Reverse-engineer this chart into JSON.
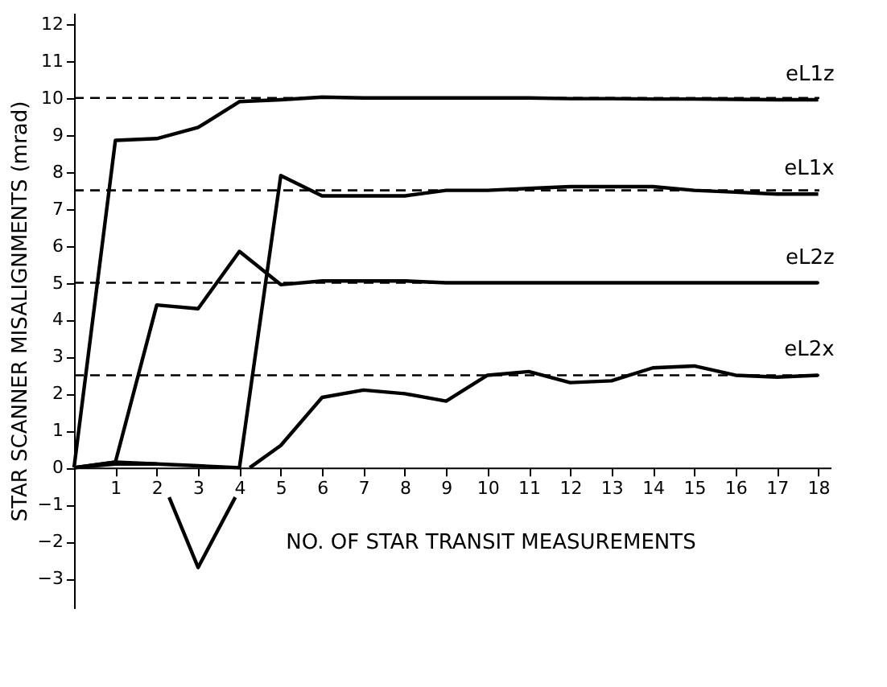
{
  "chart_data": {
    "type": "line",
    "xlabel": "NO. OF STAR TRANSIT MEASUREMENTS",
    "ylabel": "STAR SCANNER MISALIGNMENTS (mrad)",
    "series": [
      {
        "name": "eL1z",
        "color": "#000000",
        "x": [
          0,
          1,
          2,
          3,
          4,
          5,
          6,
          7,
          8,
          9,
          10,
          11,
          12,
          13,
          14,
          15,
          16,
          17,
          18
        ],
        "values": [
          0,
          8.85,
          8.9,
          9.2,
          9.9,
          9.95,
          10.02,
          10,
          10,
          10,
          10,
          10,
          9.98,
          9.98,
          9.97,
          9.97,
          9.96,
          9.95,
          9.95
        ]
      },
      {
        "name": "eL1x",
        "color": "#000000",
        "x": [
          0,
          1,
          2,
          3,
          4,
          5,
          6,
          7,
          8,
          9,
          10,
          11,
          12,
          13,
          14,
          15,
          16,
          17,
          18
        ],
        "values": [
          0,
          0.15,
          0.1,
          0.05,
          0,
          7.9,
          7.35,
          7.35,
          7.35,
          7.5,
          7.5,
          7.55,
          7.6,
          7.6,
          7.6,
          7.5,
          7.45,
          7.4,
          7.4
        ]
      },
      {
        "name": "eL2z",
        "color": "#000000",
        "x": [
          0,
          1,
          2,
          3,
          4,
          5,
          6,
          7,
          8,
          9,
          10,
          11,
          12,
          13,
          14,
          15,
          16,
          17,
          18
        ],
        "values": [
          0,
          0.15,
          4.4,
          4.3,
          5.85,
          4.95,
          5.05,
          5.05,
          5.05,
          5.0,
          5.0,
          5.0,
          5.0,
          5.0,
          5.0,
          5.0,
          5.0,
          5.0,
          5.0
        ]
      },
      {
        "name": "eL2x",
        "color": "#000000",
        "x": [
          0,
          1,
          2,
          2.15,
          2.3,
          3,
          3.9,
          4.05,
          4.25,
          5,
          6,
          7,
          8,
          9,
          10,
          11,
          12,
          13,
          14,
          15,
          16,
          17,
          18
        ],
        "values": [
          0,
          0.1,
          0.1,
          null,
          -0.8,
          -2.7,
          -0.8,
          null,
          0,
          0.6,
          1.9,
          2.1,
          2.0,
          1.8,
          2.5,
          2.6,
          2.3,
          2.35,
          2.7,
          2.75,
          2.5,
          2.45,
          2.5
        ]
      }
    ],
    "ref_lines": [
      {
        "axis": "y",
        "value": 10,
        "color": "#000000",
        "line_style": "dashed"
      },
      {
        "axis": "y",
        "value": 7.5,
        "color": "#000000",
        "line_style": "dashed"
      },
      {
        "axis": "y",
        "value": 5,
        "color": "#000000",
        "line_style": "dashed"
      },
      {
        "axis": "y",
        "value": 2.5,
        "color": "#000000",
        "line_style": "dashed"
      }
    ],
    "xlim": [
      0,
      18.3
    ],
    "xticks": [
      1,
      2,
      3,
      4,
      5,
      6,
      7,
      8,
      9,
      10,
      11,
      12,
      13,
      14,
      15,
      16,
      17,
      18
    ],
    "ylim": [
      -3.8,
      12.3
    ],
    "yticks": [
      -3,
      -2,
      -1,
      0,
      1,
      2,
      3,
      4,
      5,
      6,
      7,
      8,
      9,
      10,
      11,
      12
    ],
    "grid": false,
    "legend": false,
    "marker": "none",
    "line_style": "solid"
  }
}
